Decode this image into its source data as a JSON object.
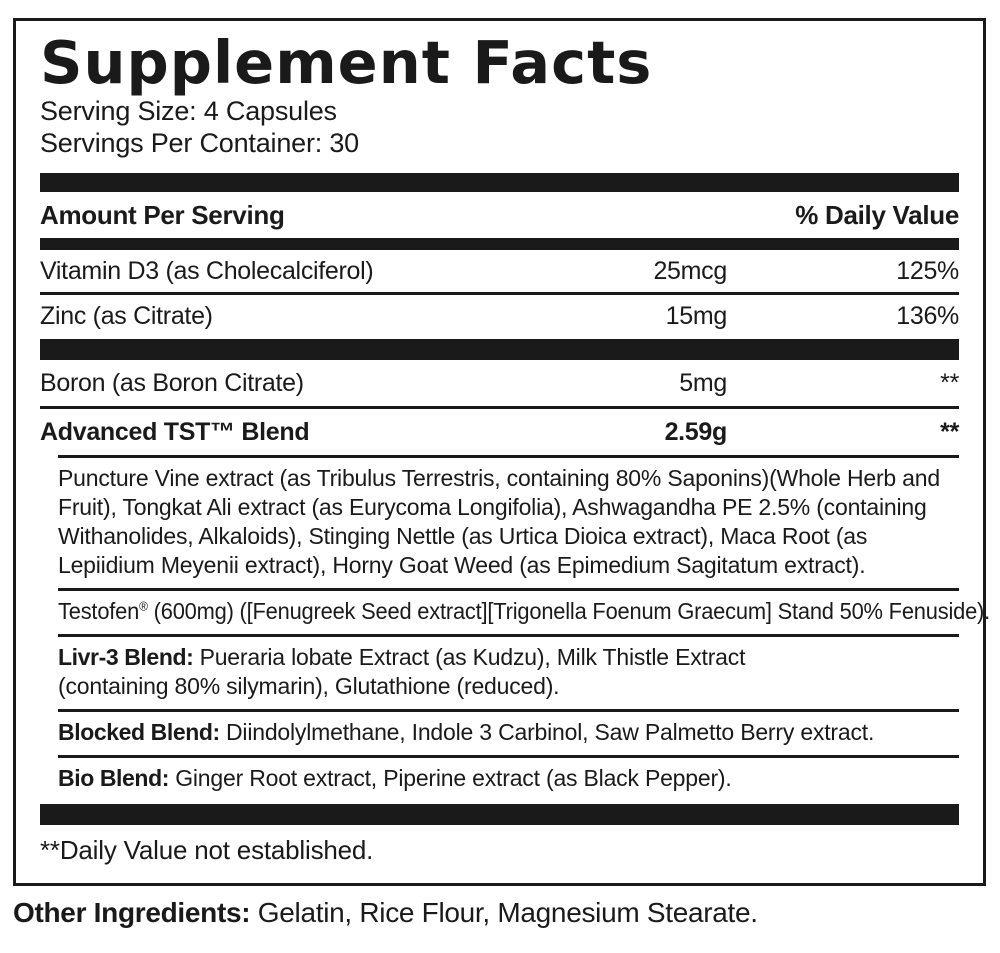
{
  "supplement_facts": {
    "title": "Supplement Facts",
    "serving_size": "Serving Size: 4 Capsules",
    "servings_per_container": "Servings Per Container: 30",
    "header": {
      "amount_label": "Amount Per Serving",
      "daily_value_label": "% Daily Value"
    },
    "nutrients": [
      {
        "name": "Vitamin D3 (as Cholecalciferol)",
        "amount": "25mcg",
        "daily_value": "125%"
      },
      {
        "name": "Zinc (as Citrate)",
        "amount": "15mg",
        "daily_value": "136%"
      },
      {
        "name": "Boron (as Boron Citrate)",
        "amount": "5mg",
        "daily_value": "**"
      },
      {
        "name": "Advanced TST™ Blend",
        "amount": "2.59g",
        "daily_value": "**"
      }
    ],
    "blend_details": {
      "tst_ingredients": "Puncture Vine extract (as Tribulus Terrestris, containing 80% Saponins)(Whole Herb and Fruit), Tongkat Ali extract (as Eurycoma Longifolia), Ashwagandha PE 2.5% (containing Withanolides, Alkaloids), Stinging Nettle (as Urtica Dioica extract), Maca Root (as Lepiidium Meyenii extract), Horny Goat Weed (as Epimedium Sagitatum extract).",
      "testofen_name": "Testofen",
      "testofen_mark": "®",
      "testofen_rest": " (600mg) ([Fenugreek Seed extract][Trigonella Foenum Graecum] Stand 50% Fenuside).",
      "livr3_label": "Livr-3 Blend:",
      "livr3_text": " Pueraria lobate Extract (as Kudzu), Milk Thistle Extract (containing 80% silymarin), Glutathione (reduced).",
      "blocked_label": "Blocked Blend:",
      "blocked_text": " Diindolylmethane, Indole 3 Carbinol, Saw Palmetto Berry extract.",
      "bio_label": "Bio Blend:",
      "bio_text": " Ginger Root extract, Piperine extract (as Black Pepper)."
    },
    "footnote": "**Daily Value not established."
  },
  "other_ingredients": {
    "label": "Other Ingredients:",
    "text": " Gelatin, Rice Flour, Magnesium Stearate."
  },
  "colors": {
    "ink": "#1a1a1a",
    "background": "#ffffff"
  }
}
